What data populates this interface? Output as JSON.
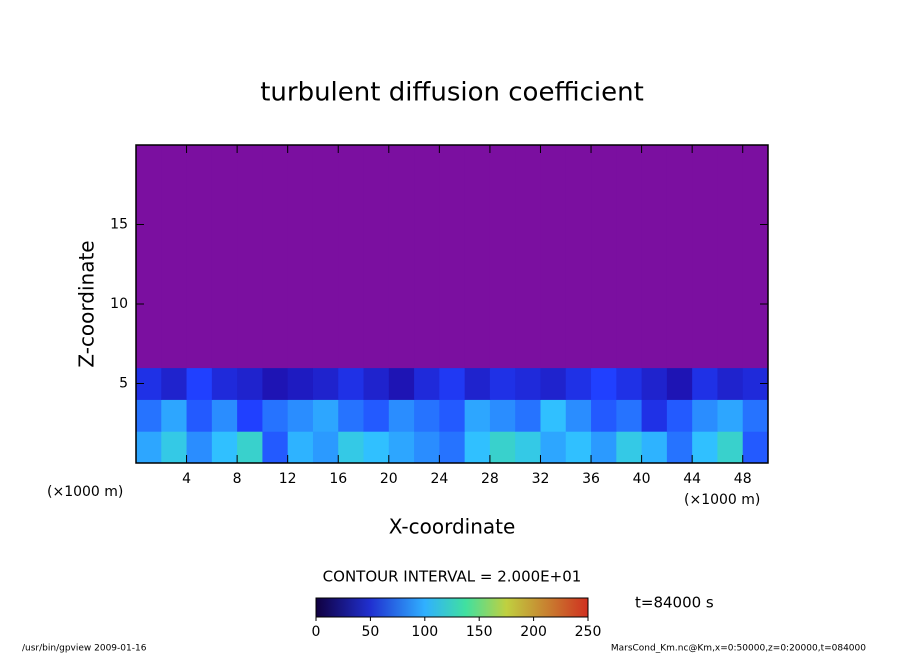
{
  "chart_data": {
    "type": "heatmap",
    "title": "turbulent diffusion coefficient",
    "x_label": "X-coordinate",
    "y_label": "Z-coordinate",
    "x_unit": "(×1000 m)",
    "y_unit": "(×1000 m)",
    "xlim": [
      0,
      50
    ],
    "ylim": [
      0,
      20
    ],
    "xticks": [
      4,
      8,
      12,
      16,
      20,
      24,
      28,
      32,
      36,
      40,
      44,
      48
    ],
    "yticks": [
      5,
      10,
      15
    ],
    "x_bins": [
      0,
      2,
      4,
      6,
      8,
      10,
      12,
      14,
      16,
      18,
      20,
      22,
      24,
      26,
      28,
      30,
      32,
      34,
      36,
      38,
      40,
      42,
      44,
      46,
      48,
      50
    ],
    "y_bins": [
      0,
      2,
      4,
      6,
      20
    ],
    "z": [
      [
        90,
        110,
        80,
        100,
        120,
        60,
        95,
        85,
        110,
        100,
        90,
        80,
        70,
        100,
        120,
        110,
        90,
        100,
        85,
        110,
        95,
        70,
        100,
        120,
        60
      ],
      [
        70,
        90,
        60,
        80,
        50,
        70,
        80,
        90,
        70,
        60,
        80,
        70,
        60,
        90,
        80,
        70,
        100,
        80,
        60,
        70,
        40,
        60,
        80,
        90,
        70
      ],
      [
        40,
        30,
        50,
        35,
        30,
        20,
        25,
        30,
        40,
        30,
        20,
        35,
        45,
        30,
        40,
        35,
        30,
        40,
        50,
        40,
        30,
        20,
        40,
        30,
        35
      ],
      [
        0,
        0,
        0,
        0,
        0,
        0,
        0,
        0,
        0,
        0,
        0,
        0,
        0,
        0,
        0,
        0,
        0,
        0,
        0,
        0,
        0,
        0,
        0,
        0,
        0
      ]
    ],
    "color_range": [
      0,
      250
    ],
    "colorbar_ticks": [
      0,
      50,
      100,
      150,
      200,
      250
    ],
    "contour_note": "CONTOUR INTERVAL = 2.000E+01",
    "time_note": "t=84000 s",
    "footer_left": "/usr/bin/gpview   2009-01-16",
    "footer_right": "MarsCond_Km.nc@Km,x=0:50000,z=0:20000,t=084000"
  }
}
